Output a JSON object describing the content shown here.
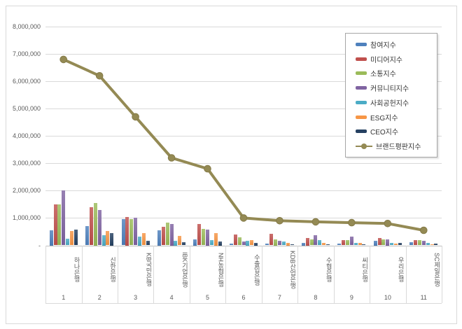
{
  "chart_data": {
    "type": "bar",
    "title": "",
    "categories": [
      "하나은행",
      "신한은행",
      "KB국민은행",
      "IBK기업은행",
      "NH농협은행",
      "수출입은행",
      "KDB산업은행",
      "수협은행",
      "씨티은행",
      "우리은행",
      "SC제일은행"
    ],
    "category_numbers": [
      "1",
      "2",
      "3",
      "4",
      "5",
      "6",
      "7",
      "8",
      "9",
      "10",
      "11"
    ],
    "series": [
      {
        "name": "참여지수",
        "type": "bar",
        "color": "#4F81BD",
        "values": [
          550000,
          700000,
          950000,
          550000,
          230000,
          60000,
          60000,
          90000,
          60000,
          180000,
          120000
        ]
      },
      {
        "name": "미디어지수",
        "type": "bar",
        "color": "#C0504D",
        "values": [
          1500000,
          1400000,
          1050000,
          680000,
          770000,
          400000,
          420000,
          270000,
          200000,
          260000,
          200000
        ]
      },
      {
        "name": "소통지수",
        "type": "bar",
        "color": "#9BBB59",
        "values": [
          1500000,
          1550000,
          950000,
          840000,
          610000,
          290000,
          230000,
          210000,
          200000,
          210000,
          200000
        ]
      },
      {
        "name": "커뮤니티지수",
        "type": "bar",
        "color": "#8064A2",
        "values": [
          2000000,
          1300000,
          1000000,
          780000,
          590000,
          130000,
          170000,
          360000,
          310000,
          230000,
          170000
        ]
      },
      {
        "name": "사회공헌지수",
        "type": "bar",
        "color": "#4BACC6",
        "values": [
          250000,
          370000,
          320000,
          160000,
          200000,
          160000,
          130000,
          190000,
          100000,
          80000,
          80000
        ]
      },
      {
        "name": "ESG지수",
        "type": "bar",
        "color": "#F79646",
        "values": [
          530000,
          530000,
          450000,
          340000,
          460000,
          190000,
          90000,
          100000,
          80000,
          60000,
          40000
        ]
      },
      {
        "name": "CEO지수",
        "type": "bar",
        "color": "#254061",
        "values": [
          570000,
          460000,
          170000,
          120000,
          140000,
          90000,
          40000,
          40000,
          40000,
          80000,
          60000
        ]
      },
      {
        "name": "브랜드평판지수",
        "type": "line",
        "color": "#948A54",
        "values": [
          6800000,
          6200000,
          4700000,
          3200000,
          2800000,
          1000000,
          900000,
          860000,
          830000,
          800000,
          550000
        ]
      }
    ],
    "ylim": [
      0,
      8000000
    ],
    "ytick_step": 1000000,
    "ytick_labels": [
      "8,000,000",
      "7,000,000",
      "6,000,000",
      "5,000,000",
      "4,000,000",
      "3,000,000",
      "2,000,000",
      "1,000,000"
    ],
    "zero_tick_label": "-",
    "grid": true,
    "legend_position": "upper-right"
  }
}
